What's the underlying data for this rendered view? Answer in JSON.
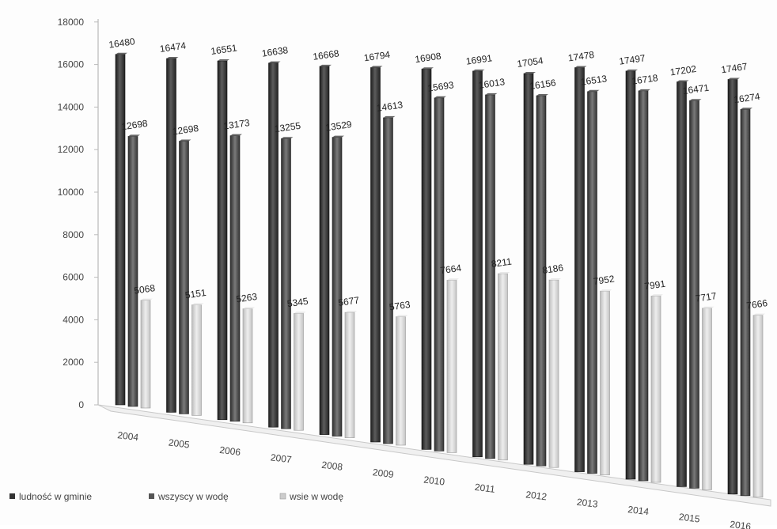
{
  "chart_data": {
    "type": "bar",
    "title": "",
    "xlabel": "",
    "ylabel": "",
    "ylim": [
      0,
      18000
    ],
    "yticks": [
      0,
      2000,
      4000,
      6000,
      8000,
      10000,
      12000,
      14000,
      16000,
      18000
    ],
    "categories": [
      "2004",
      "2005",
      "2006",
      "2007",
      "2008",
      "2009",
      "2010",
      "2011",
      "2012",
      "2013",
      "2014",
      "2015",
      "2016"
    ],
    "legend_position": "bottom",
    "grid": false,
    "series": [
      {
        "name": "ludność w gminie",
        "color": "#3a3a3a",
        "values": [
          16480,
          16474,
          16551,
          16638,
          16668,
          16794,
          16908,
          16991,
          17054,
          17478,
          17497,
          17202,
          17467
        ],
        "labels": [
          "16480",
          "16474",
          "16551",
          "16638",
          "16668",
          "16794",
          "16908",
          "16991",
          "17054",
          "17478",
          "17497",
          "17202",
          "17467"
        ]
      },
      {
        "name": "wszyscy w wodę",
        "color": "#5a5a5a",
        "values": [
          12698,
          12698,
          13173,
          13255,
          13529,
          14613,
          15693,
          16013,
          16156,
          16513,
          16718,
          16471,
          16274
        ],
        "labels": [
          "12698",
          "12698",
          "13173",
          "13255",
          "13529",
          "14613",
          "15693",
          "16013",
          "16156",
          "16513",
          "16718",
          "16471",
          "16274"
        ]
      },
      {
        "name": "wsie w wodę",
        "color": "#d4d4d4",
        "values": [
          5068,
          5151,
          5263,
          5345,
          5677,
          5763,
          7664,
          8211,
          8186,
          7952,
          7991,
          7717,
          7666
        ],
        "labels": [
          "5068",
          "5151",
          "5263",
          "5345",
          "5677",
          "5763",
          "7664",
          "8211",
          "8186",
          "7952",
          "7991",
          "7717",
          "7666"
        ]
      }
    ]
  }
}
